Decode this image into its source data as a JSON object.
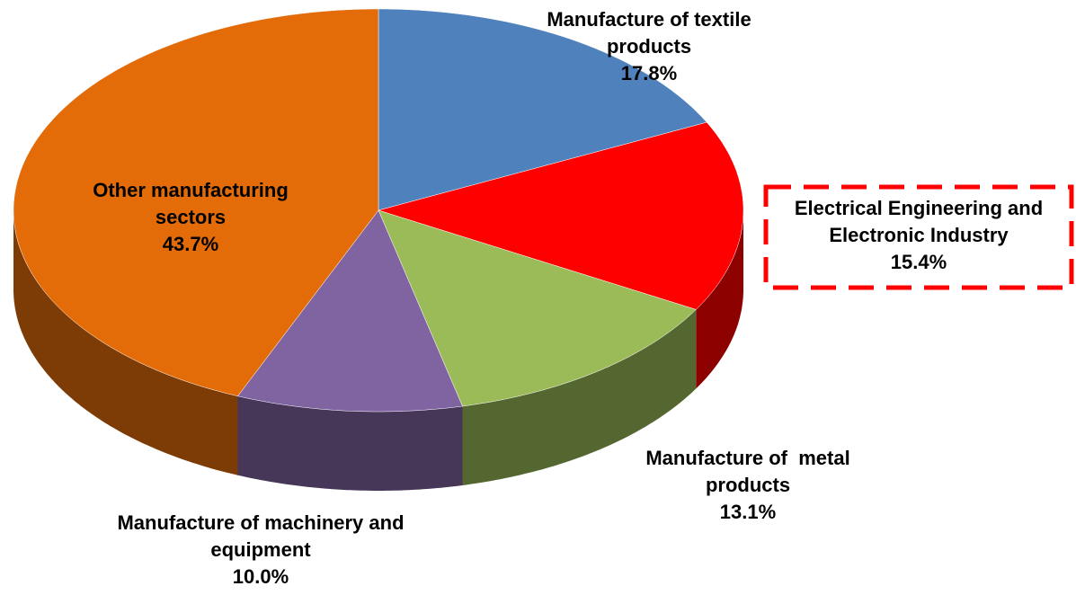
{
  "chart_data": {
    "type": "pie3d",
    "categories": [
      "Manufacture of textile products",
      "Electrical Engineering and Electronic Industry",
      "Manufacture of  metal products",
      "Manufacture of machinery and equipment",
      "Other manufacturing sectors"
    ],
    "values": [
      17.8,
      15.4,
      13.1,
      10.0,
      43.7
    ],
    "value_labels": [
      "17.8%",
      "15.4%",
      "13.1%",
      "10.0%",
      "43.7%"
    ],
    "colors": [
      "#4f81bd",
      "#ff0000",
      "#9bbb59",
      "#8064a2",
      "#e36c09"
    ]
  }
}
